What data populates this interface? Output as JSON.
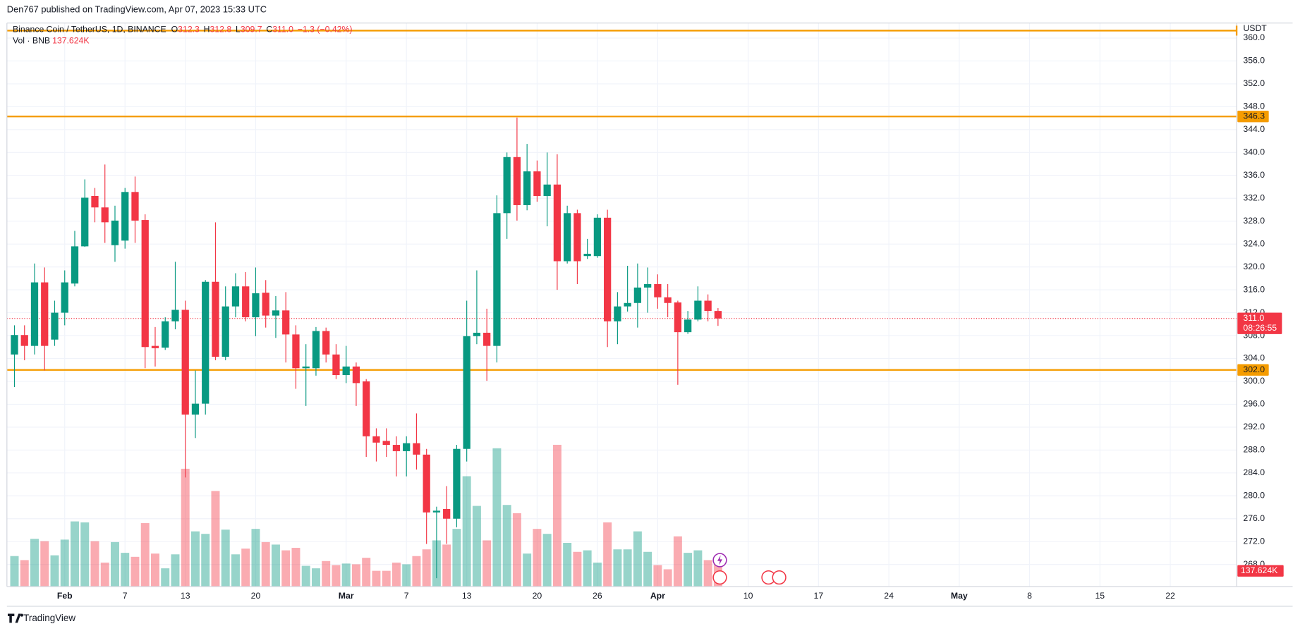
{
  "chart_data": {
    "type": "candlestick",
    "header": "Den767 published on TradingView.com, Apr 07, 2023 15:33 UTC",
    "symbol": "Binance Coin / TetherUS, 1D, BINANCE",
    "ohlc": [
      {
        "key": "O",
        "value": "312.3"
      },
      {
        "key": "H",
        "value": "312.8"
      },
      {
        "key": "L",
        "value": "309.7"
      },
      {
        "key": "C",
        "value": "311.0"
      }
    ],
    "change": "−1.3 (−0.42%)",
    "volume_title": "Vol · BNB",
    "volume_label": "137.624K",
    "currency": "USDT",
    "last_price": {
      "value": 311.0,
      "label": "311.0"
    },
    "countdown": "08:26:55",
    "levels": [
      {
        "value": 346.3,
        "label": "346.3"
      },
      {
        "value": 302.0,
        "label": "302.0"
      }
    ],
    "top_line": 361.3,
    "brand": "TradingView",
    "up_color": "#089981",
    "down_color": "#f23645",
    "level_color": "#f59c00",
    "grid": true,
    "ylim": [
      264.15,
      362.62
    ],
    "yticks": [
      {
        "value": 268,
        "label": "268.0"
      },
      {
        "value": 272,
        "label": "272.0"
      },
      {
        "value": 276,
        "label": "276.0"
      },
      {
        "value": 280,
        "label": "280.0"
      },
      {
        "value": 284,
        "label": "284.0"
      },
      {
        "value": 288,
        "label": "288.0"
      },
      {
        "value": 292,
        "label": "292.0"
      },
      {
        "value": 296,
        "label": "296.0"
      },
      {
        "value": 300,
        "label": "300.0"
      },
      {
        "value": 304,
        "label": "304.0"
      },
      {
        "value": 308,
        "label": "308.0"
      },
      {
        "value": 312,
        "label": "312.0"
      },
      {
        "value": 316,
        "label": "316.0"
      },
      {
        "value": 320,
        "label": "320.0"
      },
      {
        "value": 324,
        "label": "324.0"
      },
      {
        "value": 328,
        "label": "328.0"
      },
      {
        "value": 332,
        "label": "332.0"
      },
      {
        "value": 336,
        "label": "336.0"
      },
      {
        "value": 340,
        "label": "340.0"
      },
      {
        "value": 344,
        "label": "344.0"
      },
      {
        "value": 348,
        "label": "348.0"
      },
      {
        "value": 352,
        "label": "352.0"
      },
      {
        "value": 356,
        "label": "356.0"
      },
      {
        "value": 360,
        "label": "360.0"
      }
    ],
    "xlim": [
      -0.75,
      121.6
    ],
    "xticks": [
      {
        "value": 5,
        "label": "Feb"
      },
      {
        "value": 11,
        "label": "7"
      },
      {
        "value": 17,
        "label": "13"
      },
      {
        "value": 24,
        "label": "20"
      },
      {
        "value": 33,
        "label": "Mar"
      },
      {
        "value": 39,
        "label": "7"
      },
      {
        "value": 45,
        "label": "13"
      },
      {
        "value": 52,
        "label": "20"
      },
      {
        "value": 58,
        "label": "26"
      },
      {
        "value": 64,
        "label": "Apr"
      },
      {
        "value": 73,
        "label": "10"
      },
      {
        "value": 80,
        "label": "17"
      },
      {
        "value": 87,
        "label": "24"
      },
      {
        "value": 94,
        "label": "May"
      },
      {
        "value": 101,
        "label": "8"
      },
      {
        "value": 108,
        "label": "15"
      },
      {
        "value": 115,
        "label": "22"
      }
    ],
    "x": [
      0,
      1,
      2,
      3,
      4,
      5,
      6,
      7,
      8,
      9,
      10,
      11,
      12,
      13,
      14,
      15,
      16,
      17,
      18,
      19,
      20,
      21,
      22,
      23,
      24,
      25,
      26,
      27,
      28,
      29,
      30,
      31,
      32,
      33,
      34,
      35,
      36,
      37,
      38,
      39,
      40,
      41,
      42,
      43,
      44,
      45,
      46,
      47,
      48,
      49,
      50,
      51,
      52,
      53,
      54,
      55,
      56,
      57,
      58,
      59,
      60,
      61,
      62,
      63,
      64,
      65,
      66,
      67,
      68,
      69,
      70
    ],
    "open": [
      304.7,
      308.1,
      306.2,
      317.3,
      307.3,
      312.0,
      317.1,
      323.6,
      332.4,
      330.4,
      323.8,
      324.6,
      333.1,
      328.2,
      306.2,
      305.9,
      310.5,
      312.5,
      294.2,
      296.1,
      317.4,
      304.3,
      313.1,
      316.6,
      311.2,
      315.5,
      311.5,
      312.4,
      308.2,
      302.3,
      302.3,
      308.8,
      304.7,
      301.1,
      302.6,
      300.0,
      290.4,
      289.6,
      288.9,
      287.8,
      289.2,
      287.2,
      277.1,
      277.7,
      276.0,
      288.2,
      307.9,
      308.5,
      306.2,
      329.4,
      339.2,
      330.8,
      336.7,
      332.4,
      334.4,
      321.0,
      329.4,
      321.9,
      321.9,
      328.6,
      310.5,
      313.1,
      313.7,
      316.4,
      317.0,
      314.7,
      313.8,
      308.6,
      310.8,
      314.1,
      312.3
    ],
    "high": [
      309.8,
      309.8,
      320.6,
      319.9,
      314.1,
      319.4,
      326.3,
      335.3,
      333.8,
      337.9,
      330.7,
      333.8,
      335.8,
      329.2,
      309.5,
      311.2,
      320.9,
      314.1,
      301.9,
      317.7,
      327.8,
      316.6,
      318.9,
      319.1,
      319.9,
      317.7,
      314.9,
      315.6,
      309.8,
      306.5,
      309.5,
      309.4,
      306.5,
      306.2,
      303.3,
      300.4,
      291.8,
      291.8,
      290.4,
      290.4,
      294.4,
      288.2,
      278.1,
      281.7,
      288.9,
      314.1,
      319.4,
      312.7,
      332.5,
      340.0,
      346.1,
      341.5,
      338.6,
      340.0,
      339.7,
      330.7,
      330.0,
      324.9,
      329.2,
      330.0,
      315.6,
      320.2,
      320.6,
      319.9,
      318.7,
      317.0,
      314.1,
      312.3,
      316.6,
      315.2,
      312.8
    ],
    "low": [
      299.0,
      303.7,
      304.7,
      301.9,
      306.2,
      309.8,
      316.6,
      323.5,
      327.8,
      324.2,
      320.9,
      323.2,
      324.2,
      302.3,
      302.6,
      305.5,
      309.1,
      283.2,
      290.1,
      294.2,
      303.7,
      303.7,
      311.2,
      310.5,
      307.9,
      309.4,
      307.6,
      303.3,
      298.7,
      295.7,
      301.0,
      303.3,
      300.4,
      299.7,
      295.7,
      286.8,
      286.0,
      286.8,
      283.4,
      283.4,
      284.6,
      271.6,
      265.6,
      271.6,
      274.5,
      286.0,
      306.5,
      300.1,
      303.3,
      324.9,
      328.1,
      329.9,
      331.4,
      327.1,
      316.0,
      320.6,
      317.0,
      321.4,
      321.6,
      306.0,
      306.5,
      312.2,
      309.4,
      312.0,
      312.7,
      311.2,
      299.4,
      308.3,
      310.5,
      310.5,
      309.7
    ],
    "close": [
      308.1,
      306.2,
      317.3,
      306.2,
      312.0,
      317.3,
      323.6,
      332.1,
      330.4,
      327.8,
      328.1,
      333.1,
      328.1,
      306.0,
      305.8,
      310.5,
      312.5,
      294.2,
      296.1,
      317.4,
      304.3,
      313.1,
      316.6,
      311.2,
      315.4,
      311.5,
      312.4,
      308.2,
      302.3,
      302.6,
      308.8,
      304.7,
      301.1,
      302.6,
      299.7,
      290.4,
      289.3,
      288.9,
      287.8,
      289.2,
      287.2,
      277.1,
      277.4,
      276.0,
      288.2,
      307.9,
      308.5,
      306.2,
      329.4,
      339.2,
      330.8,
      336.7,
      332.4,
      334.4,
      321.0,
      329.4,
      321.0,
      322.3,
      328.6,
      310.5,
      313.1,
      313.7,
      316.4,
      317.0,
      314.7,
      313.7,
      308.6,
      310.8,
      314.1,
      312.3,
      311.0
    ],
    "volume": [
      159,
      138,
      249,
      237,
      163,
      245,
      340,
      335,
      237,
      125,
      232,
      176,
      155,
      331,
      172,
      95,
      168,
      615,
      288,
      275,
      499,
      297,
      168,
      198,
      301,
      232,
      219,
      189,
      202,
      108,
      95,
      133,
      112,
      120,
      116,
      150,
      82,
      82,
      125,
      116,
      159,
      194,
      241,
      219,
      301,
      576,
      421,
      241,
      722,
      426,
      383,
      172,
      301,
      275,
      740,
      228,
      181,
      189,
      125,
      335,
      194,
      194,
      288,
      181,
      112,
      90,
      262,
      176,
      189,
      138,
      137.624
    ]
  }
}
